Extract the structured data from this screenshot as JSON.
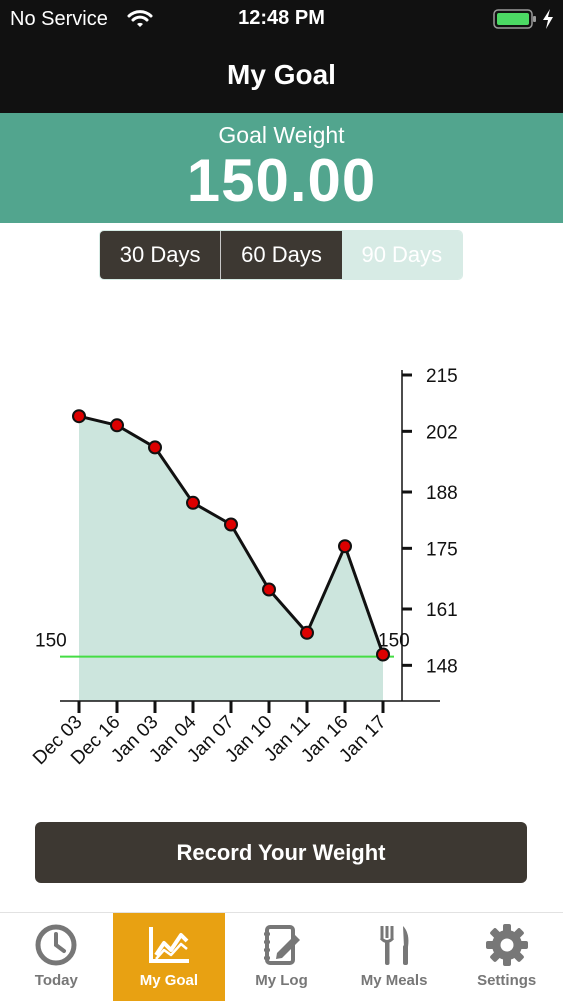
{
  "status_bar": {
    "carrier": "No Service",
    "time": "12:48 PM"
  },
  "nav": {
    "title": "My Goal"
  },
  "goal": {
    "label": "Goal Weight",
    "value": "150.00"
  },
  "range_tabs": [
    "30 Days",
    "60 Days",
    "90 Days"
  ],
  "range_selected": "90 Days",
  "chart_data": {
    "type": "line",
    "x": [
      "Dec 03",
      "Dec 16",
      "Jan 03",
      "Jan 04",
      "Jan 07",
      "Jan 10",
      "Jan 11",
      "Jan 16",
      "Jan 17"
    ],
    "series": [
      {
        "values": [
          205.5,
          203.4,
          198.3,
          185.5,
          180.5,
          165.5,
          155.5,
          175.5,
          150.5
        ]
      }
    ],
    "y_ticks": [
      215,
      202,
      188,
      175,
      161,
      148
    ],
    "ylim": [
      143,
      215
    ],
    "goal_line": 150,
    "goal_labels": [
      "150",
      "150"
    ],
    "y_axis_side": "right",
    "grid": false,
    "colors": {
      "area": "#cce5dd",
      "line": "#111111",
      "marker": "#dd0000",
      "goal": "#44dd44"
    }
  },
  "record_button": {
    "label": "Record Your Weight"
  },
  "tab_bar": {
    "items": [
      {
        "label": "Today",
        "icon": "clock-icon"
      },
      {
        "label": "My Goal",
        "icon": "chart-icon"
      },
      {
        "label": "My Log",
        "icon": "notebook-pencil-icon"
      },
      {
        "label": "My Meals",
        "icon": "fork-knife-icon"
      },
      {
        "label": "Settings",
        "icon": "gear-icon"
      }
    ],
    "active": "My Goal"
  },
  "colors": {
    "banner": "#52a58e",
    "tab_active": "#e8a112",
    "dark_button": "#3d3832"
  }
}
